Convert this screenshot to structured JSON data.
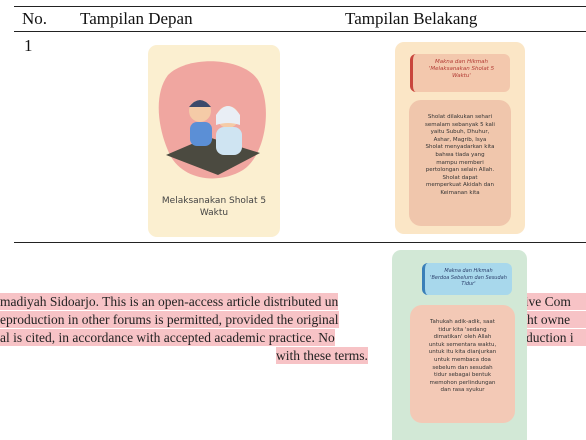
{
  "table": {
    "header": [
      "No.",
      "Tampilan Depan",
      "Tampilan Belakang"
    ],
    "rows": [
      {
        "number": "1",
        "front": {
          "caption": [
            "Melaksanakan Sholat 5",
            "Waktu"
          ]
        },
        "back": {
          "heading": [
            "Makna dan Hikmah",
            "'Melaksanakan Sholat 5",
            "Waktu'"
          ],
          "body": [
            "Sholat dilakukan sehari",
            "semalam sebanyak 5 kali",
            "yaitu Subuh, Dhuhur,",
            "Ashar, Magrib, Isya",
            "Sholat menyadarkan kita",
            "bahwa tiada yang",
            "mampu memberi",
            "pertolongan selain Allah.",
            "Sholat dapat",
            "memperkuat Akidah dan",
            "Keimanan kita"
          ]
        }
      },
      {
        "back": {
          "heading": [
            "Makna dan Hikmah",
            "'Berdoa Sebelum dan Sesudah",
            "Tidur'"
          ],
          "body": [
            "Tahukah adik-adik, saat",
            "tidur kita 'sedang",
            "dimatikan' oleh Allah",
            "untuk sementara waktu,",
            "untuk itu kita dianjurkan",
            "untuk membaca doa",
            "sebelum dan sesudah",
            "tidur sebagai bentuk",
            "memohon perlindungan",
            "dan rasa syukur"
          ]
        }
      }
    ]
  },
  "overlay": {
    "lines": [
      {
        "left": "madiyah Sidoarjo. This is an open-access article distributed un",
        "right": "tive Com"
      },
      {
        "left": "eproduction in other forums is permitted, provided the original",
        "right": "ht owne"
      },
      {
        "left": "al is cited, in accordance with accepted academic practice. No",
        "right": "duction i"
      }
    ],
    "last": "with these terms."
  }
}
